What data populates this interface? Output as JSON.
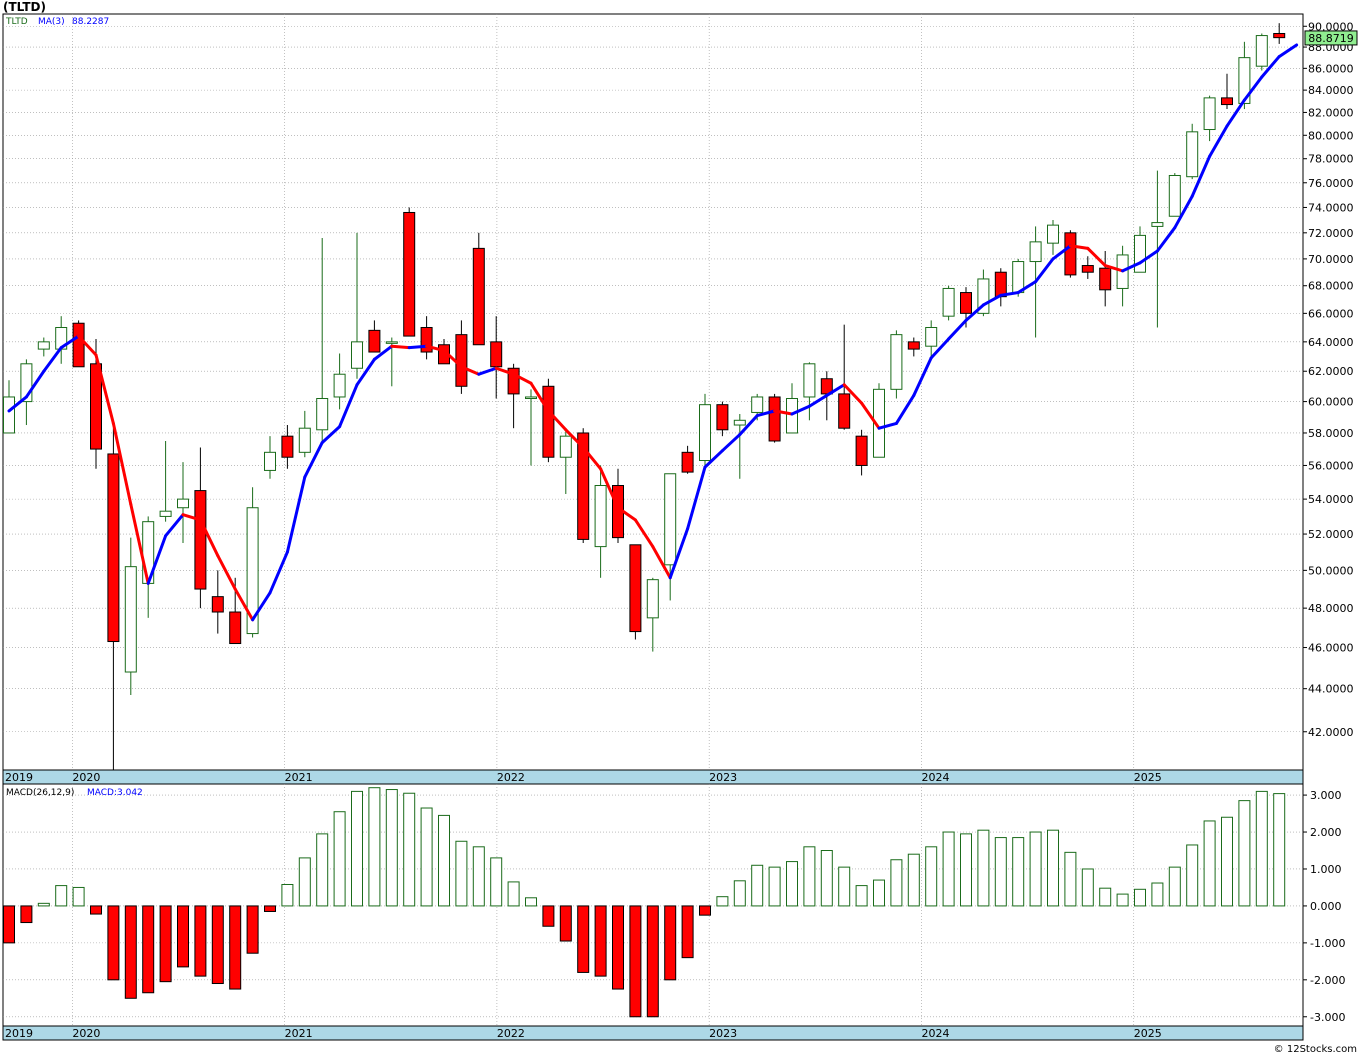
{
  "title": "(TLTD)",
  "credit": "© 12Stocks.com",
  "colors": {
    "up_candle": "#1a6b1a",
    "down_candle": "#ff0000",
    "ma_up": "#0000ff",
    "ma_down": "#ff0000",
    "grid": "#999999",
    "axis_bar": "#add8e6",
    "last_price_box": "#90ee90"
  },
  "price_panel": {
    "legend_symbol": "TLTD",
    "legend_ma_label": "MA(3)",
    "legend_ma_value": "88.2287",
    "last_price_label": "88.8719",
    "y_ticks": [
      "90.0000",
      "88.0000",
      "86.0000",
      "84.0000",
      "82.0000",
      "80.0000",
      "78.0000",
      "76.0000",
      "74.0000",
      "72.0000",
      "70.0000",
      "68.0000",
      "66.0000",
      "64.0000",
      "62.0000",
      "60.0000",
      "58.0000",
      "56.0000",
      "54.0000",
      "52.0000",
      "50.0000",
      "48.0000",
      "46.0000",
      "44.0000",
      "42.0000"
    ],
    "x_labels": [
      "2019",
      "2020",
      "2021",
      "2022",
      "2023",
      "2024",
      "2025"
    ]
  },
  "macd_panel": {
    "legend_label": "MACD(26,12,9)",
    "legend_value": "MACD:3.042",
    "y_ticks": [
      "3.000",
      "2.000",
      "1.000",
      "0.000",
      "-1.000",
      "-2.000",
      "-3.000"
    ],
    "x_labels": [
      "2019",
      "2020",
      "2021",
      "2022",
      "2023",
      "2024",
      "2025"
    ]
  },
  "chart_data": [
    {
      "type": "candlestick",
      "title": "TLTD",
      "interval": "monthly",
      "y_scale": "log",
      "ylim": [
        40.3,
        91.2
      ],
      "x_labels": [
        "2019",
        "2020",
        "2021",
        "2022",
        "2023",
        "2024",
        "2025"
      ],
      "candles": [
        {
          "o": 58.0,
          "h": 61.4,
          "l": 58.0,
          "c": 60.3
        },
        {
          "o": 60.0,
          "h": 62.8,
          "l": 58.5,
          "c": 62.5
        },
        {
          "o": 63.5,
          "h": 64.3,
          "l": 63.0,
          "c": 64.0
        },
        {
          "o": 63.5,
          "h": 65.8,
          "l": 62.5,
          "c": 65.0
        },
        {
          "o": 65.3,
          "h": 65.5,
          "l": 62.5,
          "c": 62.3
        },
        {
          "o": 62.5,
          "h": 64.2,
          "l": 55.8,
          "c": 57.0
        },
        {
          "o": 56.7,
          "h": 58.3,
          "l": 40.3,
          "c": 46.3
        },
        {
          "o": 44.8,
          "h": 51.8,
          "l": 43.7,
          "c": 50.2
        },
        {
          "o": 49.3,
          "h": 53.0,
          "l": 47.5,
          "c": 52.7
        },
        {
          "o": 53.0,
          "h": 57.5,
          "l": 52.7,
          "c": 53.3
        },
        {
          "o": 53.5,
          "h": 56.2,
          "l": 51.5,
          "c": 54.0
        },
        {
          "o": 54.5,
          "h": 57.1,
          "l": 48.0,
          "c": 49.0
        },
        {
          "o": 48.6,
          "h": 50.0,
          "l": 46.7,
          "c": 47.8
        },
        {
          "o": 47.8,
          "h": 49.6,
          "l": 46.2,
          "c": 46.2
        },
        {
          "o": 46.7,
          "h": 54.7,
          "l": 46.5,
          "c": 53.5
        },
        {
          "o": 55.7,
          "h": 57.8,
          "l": 55.2,
          "c": 56.8
        },
        {
          "o": 57.8,
          "h": 58.5,
          "l": 55.8,
          "c": 56.5
        },
        {
          "o": 56.8,
          "h": 59.4,
          "l": 56.5,
          "c": 58.3
        },
        {
          "o": 58.2,
          "h": 71.6,
          "l": 57.5,
          "c": 60.2
        },
        {
          "o": 60.3,
          "h": 63.2,
          "l": 59.5,
          "c": 61.8
        },
        {
          "o": 62.2,
          "h": 72.0,
          "l": 61.5,
          "c": 64.0
        },
        {
          "o": 64.8,
          "h": 65.5,
          "l": 63.3,
          "c": 63.3
        },
        {
          "o": 64.0,
          "h": 64.3,
          "l": 61.0,
          "c": 64.0
        },
        {
          "o": 73.6,
          "h": 74.0,
          "l": 64.4,
          "c": 64.4
        },
        {
          "o": 65.0,
          "h": 65.8,
          "l": 62.8,
          "c": 63.3
        },
        {
          "o": 63.8,
          "h": 64.2,
          "l": 62.5,
          "c": 62.5
        },
        {
          "o": 64.5,
          "h": 65.5,
          "l": 60.5,
          "c": 61.0
        },
        {
          "o": 70.8,
          "h": 72.0,
          "l": 63.8,
          "c": 63.8
        },
        {
          "o": 64.0,
          "h": 65.8,
          "l": 60.2,
          "c": 62.3
        },
        {
          "o": 62.2,
          "h": 62.5,
          "l": 58.3,
          "c": 60.5
        },
        {
          "o": 60.2,
          "h": 60.8,
          "l": 56.0,
          "c": 60.3
        },
        {
          "o": 61.0,
          "h": 61.5,
          "l": 56.2,
          "c": 56.5
        },
        {
          "o": 56.5,
          "h": 58.3,
          "l": 54.3,
          "c": 57.8
        },
        {
          "o": 58.0,
          "h": 58.3,
          "l": 51.5,
          "c": 51.7
        },
        {
          "o": 51.3,
          "h": 56.0,
          "l": 49.6,
          "c": 54.8
        },
        {
          "o": 54.8,
          "h": 55.8,
          "l": 51.5,
          "c": 51.8
        },
        {
          "o": 51.4,
          "h": 51.4,
          "l": 46.4,
          "c": 46.8
        },
        {
          "o": 47.5,
          "h": 49.6,
          "l": 45.8,
          "c": 49.5
        },
        {
          "o": 50.3,
          "h": 55.5,
          "l": 48.4,
          "c": 55.5
        },
        {
          "o": 56.8,
          "h": 57.2,
          "l": 55.5,
          "c": 55.6
        },
        {
          "o": 56.3,
          "h": 60.5,
          "l": 55.8,
          "c": 59.8
        },
        {
          "o": 59.8,
          "h": 60.0,
          "l": 57.8,
          "c": 58.2
        },
        {
          "o": 58.5,
          "h": 59.2,
          "l": 55.2,
          "c": 58.8
        },
        {
          "o": 59.3,
          "h": 60.5,
          "l": 58.8,
          "c": 60.3
        },
        {
          "o": 60.3,
          "h": 60.5,
          "l": 57.4,
          "c": 57.5
        },
        {
          "o": 58.0,
          "h": 61.2,
          "l": 58.0,
          "c": 60.2
        },
        {
          "o": 60.3,
          "h": 62.6,
          "l": 58.8,
          "c": 62.5
        },
        {
          "o": 61.5,
          "h": 62.0,
          "l": 58.8,
          "c": 60.5
        },
        {
          "o": 60.5,
          "h": 65.2,
          "l": 58.2,
          "c": 58.3
        },
        {
          "o": 57.8,
          "h": 58.2,
          "l": 55.4,
          "c": 56.0
        },
        {
          "o": 56.5,
          "h": 61.2,
          "l": 56.5,
          "c": 60.8
        },
        {
          "o": 60.8,
          "h": 64.8,
          "l": 60.2,
          "c": 64.5
        },
        {
          "o": 64.0,
          "h": 64.3,
          "l": 63.0,
          "c": 63.5
        },
        {
          "o": 63.7,
          "h": 65.5,
          "l": 63.0,
          "c": 65.0
        },
        {
          "o": 65.8,
          "h": 68.0,
          "l": 65.5,
          "c": 67.8
        },
        {
          "o": 67.5,
          "h": 67.9,
          "l": 65.0,
          "c": 66.0
        },
        {
          "o": 66.0,
          "h": 69.2,
          "l": 65.8,
          "c": 68.5
        },
        {
          "o": 69.0,
          "h": 69.3,
          "l": 66.5,
          "c": 67.2
        },
        {
          "o": 67.5,
          "h": 70.0,
          "l": 67.2,
          "c": 69.8
        },
        {
          "o": 69.8,
          "h": 72.5,
          "l": 64.3,
          "c": 71.3
        },
        {
          "o": 71.2,
          "h": 73.0,
          "l": 70.3,
          "c": 72.6
        },
        {
          "o": 72.0,
          "h": 72.2,
          "l": 68.6,
          "c": 68.8
        },
        {
          "o": 69.5,
          "h": 70.2,
          "l": 68.5,
          "c": 69.0
        },
        {
          "o": 69.3,
          "h": 70.6,
          "l": 66.5,
          "c": 67.7
        },
        {
          "o": 67.8,
          "h": 71.0,
          "l": 66.5,
          "c": 70.3
        },
        {
          "o": 69.0,
          "h": 72.5,
          "l": 69.0,
          "c": 71.8
        },
        {
          "o": 72.5,
          "h": 77.0,
          "l": 65.0,
          "c": 72.8
        },
        {
          "o": 73.3,
          "h": 76.8,
          "l": 73.3,
          "c": 76.6
        },
        {
          "o": 76.5,
          "h": 81.0,
          "l": 76.3,
          "c": 80.3
        },
        {
          "o": 80.5,
          "h": 83.5,
          "l": 79.5,
          "c": 83.3
        },
        {
          "o": 83.3,
          "h": 85.5,
          "l": 82.3,
          "c": 82.7
        },
        {
          "o": 82.8,
          "h": 88.5,
          "l": 82.3,
          "c": 87.0
        },
        {
          "o": 86.2,
          "h": 89.3,
          "l": 85.8,
          "c": 89.1
        },
        {
          "o": 89.3,
          "h": 90.3,
          "l": 88.3,
          "c": 88.9
        }
      ],
      "ma3": [
        59.4,
        60.3,
        62.0,
        63.6,
        64.4,
        63.1,
        58.6,
        53.7,
        49.3,
        51.9,
        53.1,
        52.8,
        50.8,
        49.0,
        47.4,
        48.8,
        51.0,
        55.3,
        57.4,
        58.4,
        61.1,
        62.8,
        63.7,
        63.6,
        63.7,
        63.4,
        62.3,
        61.8,
        62.2,
        61.8,
        61.2,
        59.4,
        58.2,
        57.1,
        55.8,
        53.5,
        52.8,
        51.3,
        49.6,
        52.3,
        55.9,
        56.9,
        57.9,
        59.1,
        59.4,
        59.2,
        59.7,
        60.4,
        61.1,
        59.9,
        58.3,
        58.6,
        60.4,
        62.9,
        64.2,
        65.5,
        66.6,
        67.3,
        67.5,
        68.3,
        70.0,
        71.0,
        70.8,
        69.5,
        69.1,
        69.7,
        70.6,
        72.4,
        74.9,
        78.2,
        80.8,
        83.1,
        85.2,
        87.1,
        88.2
      ],
      "ma3_last": 88.2287,
      "last_price": 88.8719
    },
    {
      "type": "bar",
      "title": "MACD(26,12,9)",
      "x_labels": [
        "2019",
        "2020",
        "2021",
        "2022",
        "2023",
        "2024",
        "2025"
      ],
      "ylim": [
        -3.0,
        3.0
      ],
      "values": [
        -1.0,
        -0.45,
        0.07,
        0.55,
        0.5,
        -0.22,
        -2.0,
        -2.5,
        -2.35,
        -2.05,
        -1.65,
        -1.9,
        -2.1,
        -2.25,
        -1.28,
        -0.15,
        0.58,
        1.3,
        1.95,
        2.55,
        3.1,
        3.2,
        3.15,
        3.05,
        2.65,
        2.45,
        1.75,
        1.6,
        1.3,
        0.65,
        0.22,
        -0.55,
        -0.95,
        -1.8,
        -1.9,
        -2.25,
        -3.0,
        -3.0,
        -2.0,
        -1.4,
        -0.25,
        0.25,
        0.68,
        1.1,
        1.05,
        1.2,
        1.6,
        1.5,
        1.05,
        0.55,
        0.7,
        1.25,
        1.4,
        1.6,
        2.0,
        1.95,
        2.05,
        1.85,
        1.85,
        2.0,
        2.05,
        1.45,
        1.0,
        0.48,
        0.32,
        0.45,
        0.62,
        1.05,
        1.65,
        2.3,
        2.4,
        2.85,
        3.1,
        3.04
      ],
      "last_value": 3.042
    }
  ]
}
